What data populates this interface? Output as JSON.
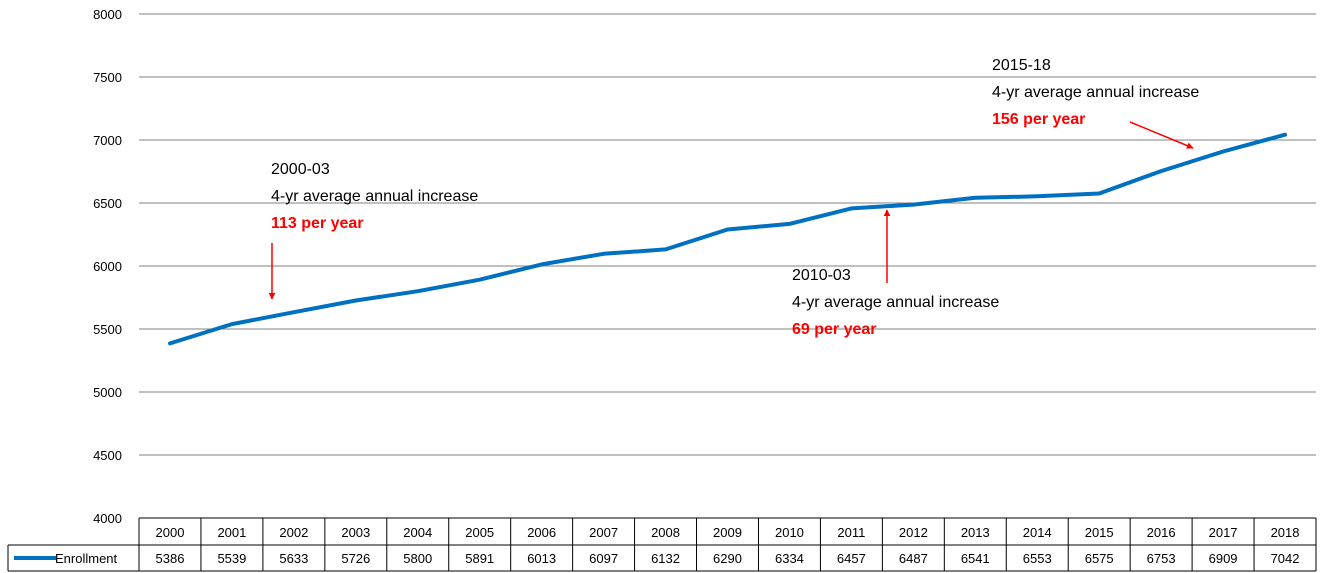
{
  "chart_data": {
    "type": "line",
    "title": "",
    "xlabel": "",
    "ylabel": "",
    "ylim": [
      4000,
      8000
    ],
    "y_ticks": [
      "4000",
      "4500",
      "5000",
      "5500",
      "6000",
      "6500",
      "7000",
      "7500",
      "8000"
    ],
    "grid": true,
    "legend": "data-table",
    "categories": [
      "2000",
      "2001",
      "2002",
      "2003",
      "2004",
      "2005",
      "2006",
      "2007",
      "2008",
      "2009",
      "2010",
      "2011",
      "2012",
      "2013",
      "2014",
      "2015",
      "2016",
      "2017",
      "2018"
    ],
    "series": [
      {
        "name": "Enrollment",
        "color": "#0070c0",
        "values": [
          5386,
          5539,
          5633,
          5726,
          5800,
          5891,
          6013,
          6097,
          6132,
          6290,
          6334,
          6457,
          6487,
          6541,
          6553,
          6575,
          6753,
          6909,
          7042
        ]
      }
    ],
    "annotations": [
      {
        "title": "2000-03",
        "text": "4-yr average annual increase",
        "highlight": "113 per year",
        "highlight_color": "#ff0000"
      },
      {
        "title": "2010-03",
        "text": "4-yr average annual increase",
        "highlight": "69 per year",
        "highlight_color": "#ff0000"
      },
      {
        "title": "2015-18",
        "text": "4-yr average annual increase",
        "highlight": "156 per year",
        "highlight_color": "#ff0000"
      }
    ]
  }
}
